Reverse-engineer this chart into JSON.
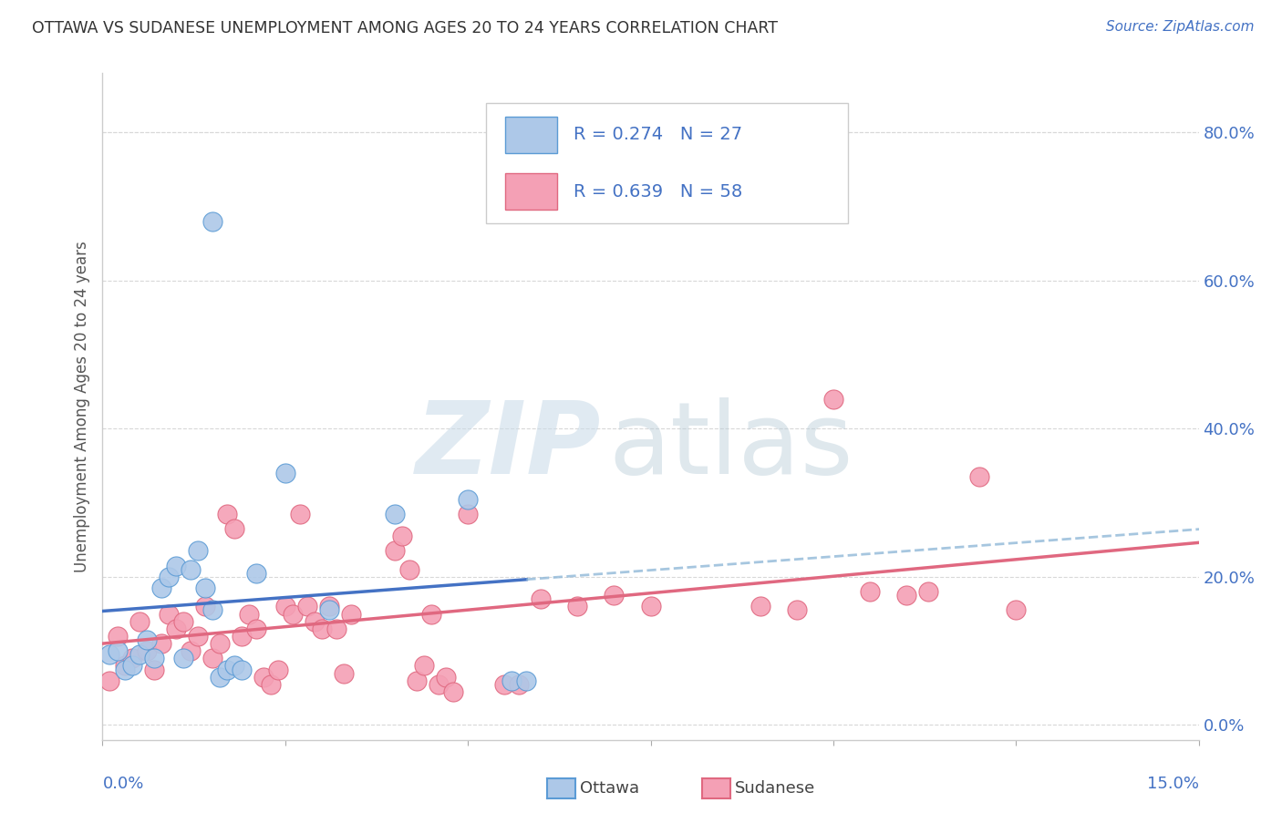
{
  "title": "OTTAWA VS SUDANESE UNEMPLOYMENT AMONG AGES 20 TO 24 YEARS CORRELATION CHART",
  "source": "Source: ZipAtlas.com",
  "ylabel": "Unemployment Among Ages 20 to 24 years",
  "right_ytick_vals": [
    0.0,
    0.2,
    0.4,
    0.6,
    0.8
  ],
  "right_ytick_labels": [
    "0.0%",
    "20.0%",
    "40.0%",
    "60.0%",
    "80.0%"
  ],
  "xlim": [
    0.0,
    0.15
  ],
  "ylim": [
    -0.02,
    0.88
  ],
  "ottawa_fill": "#adc8e8",
  "ottawa_edge": "#5b9bd5",
  "sudanese_fill": "#f4a0b5",
  "sudanese_edge": "#e06880",
  "trendline_ottawa_solid": "#4472c4",
  "trendline_ottawa_dash": "#90b8d8",
  "trendline_sudanese": "#e06880",
  "grid_color": "#d8d8d8",
  "bg_color": "#ffffff",
  "text_color": "#333333",
  "axis_label_color": "#4472c4",
  "ottawa_scatter": [
    [
      0.001,
      0.095
    ],
    [
      0.002,
      0.1
    ],
    [
      0.003,
      0.075
    ],
    [
      0.004,
      0.08
    ],
    [
      0.005,
      0.095
    ],
    [
      0.006,
      0.115
    ],
    [
      0.007,
      0.09
    ],
    [
      0.008,
      0.185
    ],
    [
      0.009,
      0.2
    ],
    [
      0.01,
      0.215
    ],
    [
      0.011,
      0.09
    ],
    [
      0.012,
      0.21
    ],
    [
      0.013,
      0.235
    ],
    [
      0.014,
      0.185
    ],
    [
      0.015,
      0.155
    ],
    [
      0.016,
      0.065
    ],
    [
      0.017,
      0.075
    ],
    [
      0.018,
      0.08
    ],
    [
      0.019,
      0.075
    ],
    [
      0.021,
      0.205
    ],
    [
      0.025,
      0.34
    ],
    [
      0.031,
      0.155
    ],
    [
      0.04,
      0.285
    ],
    [
      0.05,
      0.305
    ],
    [
      0.056,
      0.06
    ],
    [
      0.058,
      0.06
    ],
    [
      0.008,
      0.68
    ]
  ],
  "sudanese_scatter": [
    [
      0.001,
      0.06
    ],
    [
      0.002,
      0.12
    ],
    [
      0.003,
      0.08
    ],
    [
      0.004,
      0.09
    ],
    [
      0.005,
      0.14
    ],
    [
      0.006,
      0.1
    ],
    [
      0.007,
      0.075
    ],
    [
      0.008,
      0.11
    ],
    [
      0.009,
      0.15
    ],
    [
      0.01,
      0.13
    ],
    [
      0.011,
      0.14
    ],
    [
      0.012,
      0.1
    ],
    [
      0.013,
      0.12
    ],
    [
      0.014,
      0.16
    ],
    [
      0.015,
      0.09
    ],
    [
      0.016,
      0.11
    ],
    [
      0.017,
      0.285
    ],
    [
      0.018,
      0.265
    ],
    [
      0.019,
      0.12
    ],
    [
      0.02,
      0.15
    ],
    [
      0.021,
      0.13
    ],
    [
      0.022,
      0.065
    ],
    [
      0.023,
      0.055
    ],
    [
      0.024,
      0.075
    ],
    [
      0.025,
      0.16
    ],
    [
      0.026,
      0.15
    ],
    [
      0.027,
      0.285
    ],
    [
      0.028,
      0.16
    ],
    [
      0.029,
      0.14
    ],
    [
      0.03,
      0.13
    ],
    [
      0.031,
      0.16
    ],
    [
      0.032,
      0.13
    ],
    [
      0.033,
      0.07
    ],
    [
      0.034,
      0.15
    ],
    [
      0.04,
      0.235
    ],
    [
      0.041,
      0.255
    ],
    [
      0.042,
      0.21
    ],
    [
      0.043,
      0.06
    ],
    [
      0.044,
      0.08
    ],
    [
      0.045,
      0.15
    ],
    [
      0.046,
      0.055
    ],
    [
      0.047,
      0.065
    ],
    [
      0.048,
      0.045
    ],
    [
      0.05,
      0.285
    ],
    [
      0.055,
      0.055
    ],
    [
      0.057,
      0.055
    ],
    [
      0.06,
      0.17
    ],
    [
      0.065,
      0.16
    ],
    [
      0.07,
      0.175
    ],
    [
      0.075,
      0.16
    ],
    [
      0.09,
      0.16
    ],
    [
      0.095,
      0.155
    ],
    [
      0.1,
      0.44
    ],
    [
      0.105,
      0.18
    ],
    [
      0.11,
      0.175
    ],
    [
      0.113,
      0.18
    ],
    [
      0.12,
      0.335
    ],
    [
      0.125,
      0.155
    ]
  ]
}
